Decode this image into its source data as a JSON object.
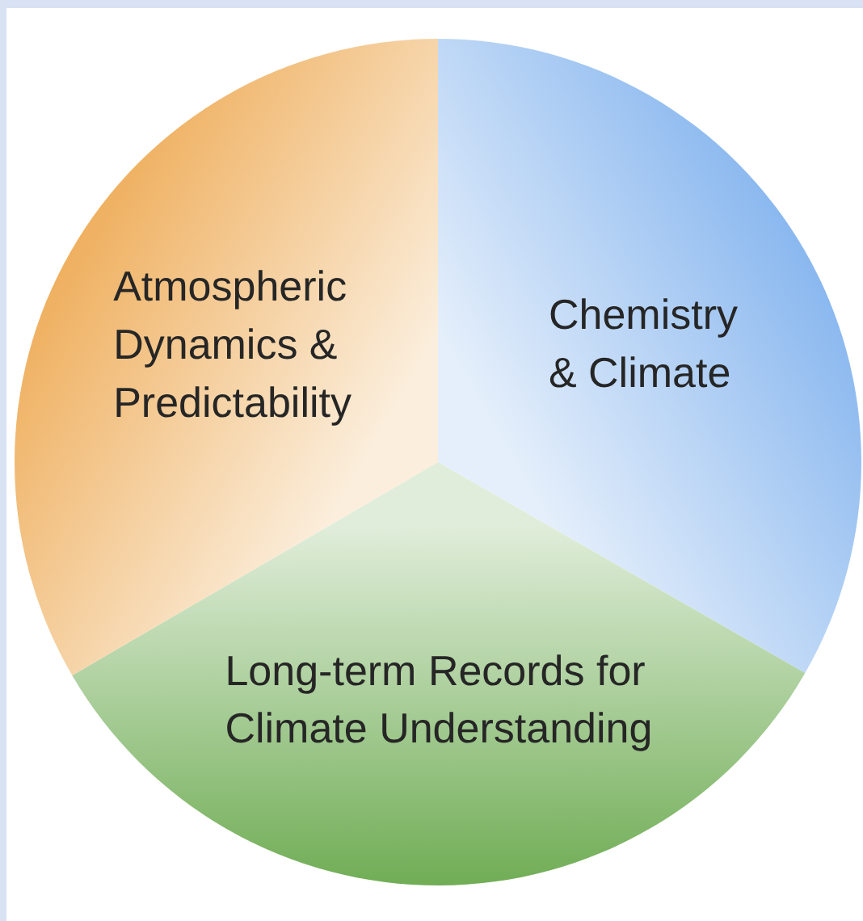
{
  "chart_data": {
    "type": "pie",
    "categories": [
      "Chemistry\n& Climate",
      "Long-term Records for\nClimate Understanding",
      "Atmospheric\nDynamics &\nPredictability"
    ],
    "values": [
      33.3,
      33.3,
      33.4
    ],
    "colors": [
      "#8ab8ef",
      "#70ad55",
      "#efb060"
    ]
  }
}
